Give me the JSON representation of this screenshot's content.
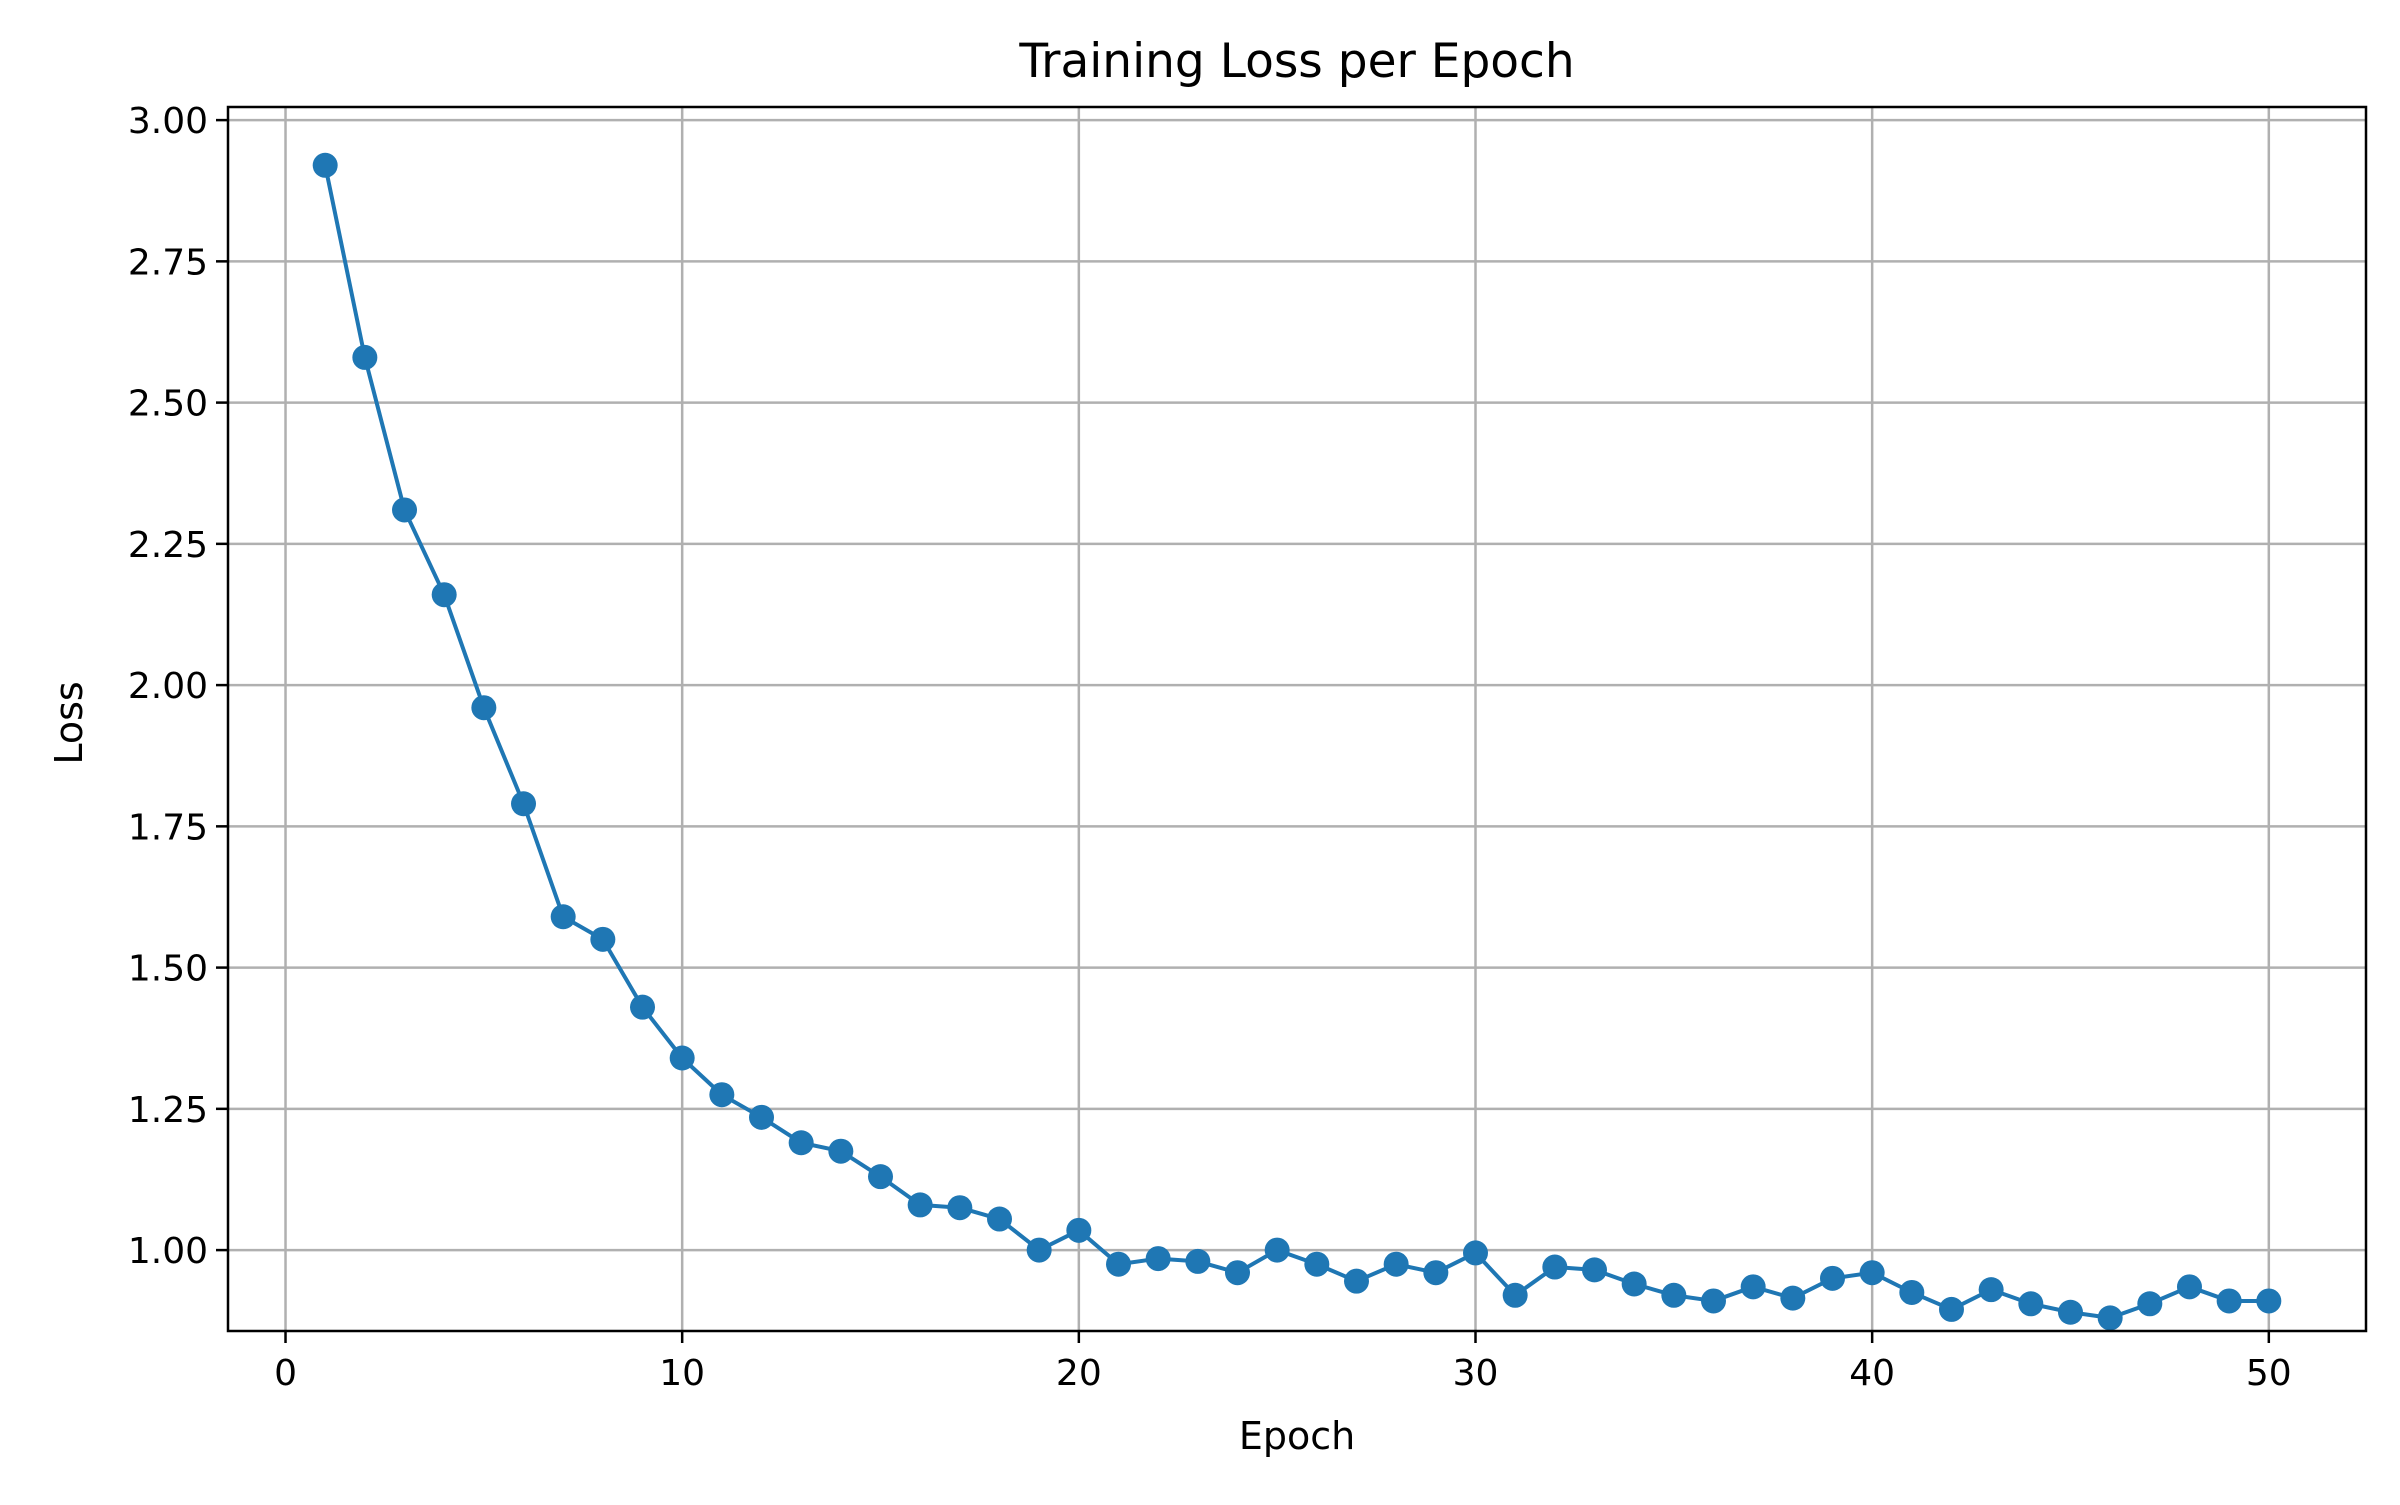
{
  "chart_data": {
    "type": "line",
    "title": "Training Loss per Epoch",
    "xlabel": "Epoch",
    "ylabel": "Loss",
    "xlim": [
      -1.45,
      52.45
    ],
    "ylim": [
      0.8568,
      3.0232
    ],
    "xticks": [
      0,
      10,
      20,
      30,
      40,
      50
    ],
    "xtick_labels": [
      "0",
      "10",
      "20",
      "30",
      "40",
      "50"
    ],
    "yticks": [
      1.0,
      1.25,
      1.5,
      1.75,
      2.0,
      2.25,
      2.5,
      2.75,
      3.0
    ],
    "ytick_labels": [
      "1.00",
      "1.25",
      "1.50",
      "1.75",
      "2.00",
      "2.25",
      "2.50",
      "2.75",
      "3.00"
    ],
    "grid": true,
    "series": [
      {
        "color": "#1f77b4",
        "marker": "circle",
        "x": [
          1,
          2,
          3,
          4,
          5,
          6,
          7,
          8,
          9,
          10,
          11,
          12,
          13,
          14,
          15,
          16,
          17,
          18,
          19,
          20,
          21,
          22,
          23,
          24,
          25,
          26,
          27,
          28,
          29,
          30,
          31,
          32,
          33,
          34,
          35,
          36,
          37,
          38,
          39,
          40,
          41,
          42,
          43,
          44,
          45,
          46,
          47,
          48,
          49,
          50
        ],
        "values": [
          2.92,
          2.58,
          2.31,
          2.16,
          1.96,
          1.79,
          1.59,
          1.55,
          1.43,
          1.34,
          1.275,
          1.235,
          1.19,
          1.175,
          1.13,
          1.08,
          1.075,
          1.055,
          1.0,
          1.035,
          0.975,
          0.985,
          0.98,
          0.96,
          1.0,
          0.975,
          0.945,
          0.975,
          0.96,
          0.995,
          0.92,
          0.97,
          0.965,
          0.94,
          0.92,
          0.91,
          0.935,
          0.915,
          0.95,
          0.96,
          0.925,
          0.895,
          0.93,
          0.905,
          0.89,
          0.88,
          0.905,
          0.935,
          0.91,
          0.91
        ]
      }
    ]
  }
}
